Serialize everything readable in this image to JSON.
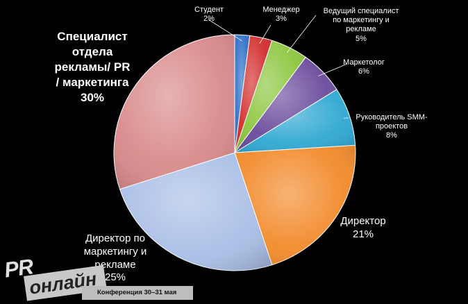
{
  "chart_data": {
    "type": "pie",
    "title": "",
    "slices": [
      {
        "label": "Студент",
        "value": 2,
        "pct_label": "2%",
        "color": "#2f6fc7"
      },
      {
        "label": "Менеджер",
        "value": 3,
        "pct_label": "3%",
        "color": "#d22c2c"
      },
      {
        "label": "Ведущий специалист по маркетингу и рекламе",
        "value": 5,
        "pct_label": "5%",
        "color": "#8cc63e"
      },
      {
        "label": "Маркетолог",
        "value": 6,
        "pct_label": "6%",
        "color": "#6a4a9c"
      },
      {
        "label": "Руководитель SMM-проектов",
        "value": 8,
        "pct_label": "8%",
        "color": "#2fa8d2"
      },
      {
        "label": "Директор",
        "value": 21,
        "pct_label": "21%",
        "color": "#f28a2a"
      },
      {
        "label": "Директор по маркетингу и рекламе",
        "value": 25,
        "pct_label": "25%",
        "color": "#a9bfe6"
      },
      {
        "label": "Специалист отдела рекламы/ PR / маркетинга",
        "value": 30,
        "pct_label": "30%",
        "color": "#d98a8a"
      }
    ]
  },
  "labels": {
    "student": {
      "name": "Студент",
      "pct": "2%"
    },
    "manager": {
      "name": "Менеджер",
      "pct": "3%"
    },
    "lead": {
      "line1": "Ведущий  специалист",
      "line2": "по маркетингу и",
      "line3": "рекламе",
      "pct": "5%"
    },
    "marketer": {
      "name": "Маркетолог",
      "pct": "6%"
    },
    "smm": {
      "line1": "Руководитель SMM-",
      "line2": "проектов",
      "pct": "8%"
    },
    "director": {
      "name": "Директор",
      "pct": "21%"
    },
    "cmo": {
      "line1": "Директор по",
      "line2": "маркетингу и",
      "line3": "рекламе",
      "pct": "25%"
    },
    "specialist": {
      "line1": "Специалист",
      "line2": "отдела",
      "line3": "рекламы/ PR",
      "line4": "/ маркетинга",
      "pct": "30%"
    }
  },
  "logo": {
    "pr": "PR",
    "online": "онлайн",
    "conference": "Конференция 30–31 мая"
  }
}
